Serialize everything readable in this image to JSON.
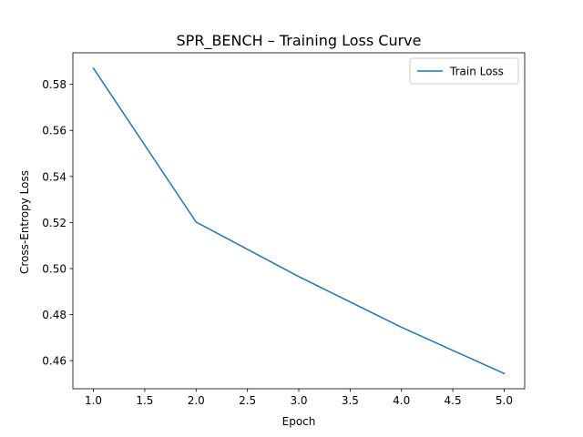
{
  "chart_data": {
    "type": "line",
    "title": "SPR_BENCH – Training Loss Curve",
    "xlabel": "Epoch",
    "ylabel": "Cross-Entropy Loss",
    "x": [
      1,
      2,
      3,
      4,
      5
    ],
    "series": [
      {
        "name": "Train Loss",
        "color": "#1f77b4",
        "values": [
          0.587,
          0.5202,
          0.4965,
          0.4745,
          0.4544
        ]
      }
    ],
    "xlim": [
      0.8,
      5.2
    ],
    "ylim": [
      0.4478,
      0.5937
    ],
    "xticks": [
      1.0,
      1.5,
      2.0,
      2.5,
      3.0,
      3.5,
      4.0,
      4.5,
      5.0
    ],
    "xtick_labels": [
      "1.0",
      "1.5",
      "2.0",
      "2.5",
      "3.0",
      "3.5",
      "4.0",
      "4.5",
      "5.0"
    ],
    "yticks": [
      0.46,
      0.48,
      0.5,
      0.52,
      0.54,
      0.56,
      0.58
    ],
    "ytick_labels": [
      "0.46",
      "0.48",
      "0.50",
      "0.52",
      "0.54",
      "0.56",
      "0.58"
    ],
    "grid": false,
    "legend_position": "top-right"
  }
}
